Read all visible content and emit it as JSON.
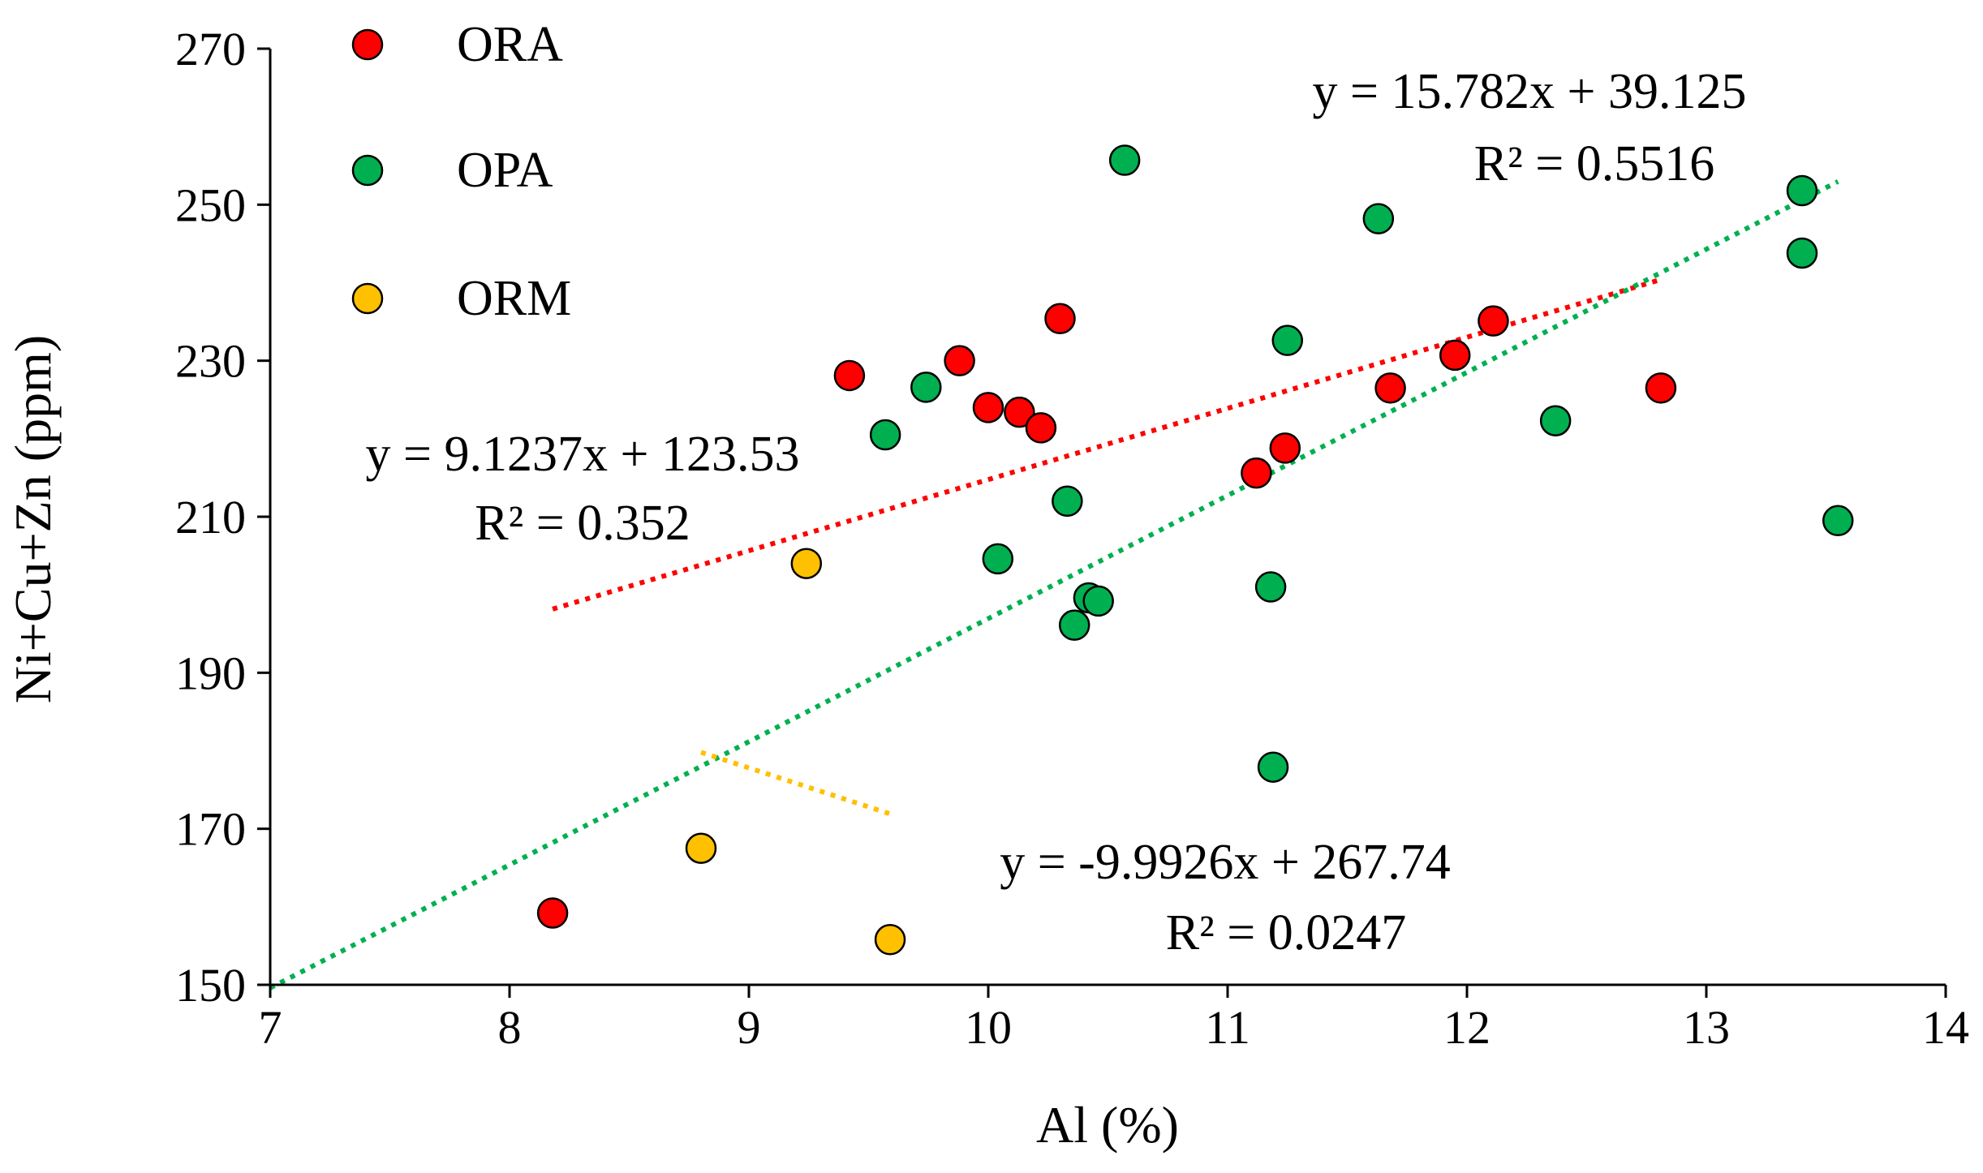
{
  "chart_data": {
    "type": "scatter",
    "title": "",
    "xlabel": "Al (%)",
    "ylabel": "Ni+Cu+Zn (ppm)",
    "xlim": [
      7,
      14
    ],
    "ylim": [
      150,
      270
    ],
    "xticks": [
      7,
      8,
      9,
      10,
      11,
      12,
      13,
      14
    ],
    "yticks": [
      150,
      170,
      190,
      210,
      230,
      250,
      270
    ],
    "grid": false,
    "legend_position": "top-left",
    "series": [
      {
        "name": "ORA",
        "color": "#ff0000",
        "points": [
          {
            "x": 8.18,
            "y": 159.2
          },
          {
            "x": 9.42,
            "y": 228.1
          },
          {
            "x": 9.88,
            "y": 230.0
          },
          {
            "x": 10.0,
            "y": 224.0
          },
          {
            "x": 10.13,
            "y": 223.4
          },
          {
            "x": 10.22,
            "y": 221.4
          },
          {
            "x": 10.3,
            "y": 235.4
          },
          {
            "x": 11.12,
            "y": 215.6
          },
          {
            "x": 11.24,
            "y": 218.8
          },
          {
            "x": 11.68,
            "y": 226.5
          },
          {
            "x": 11.95,
            "y": 230.7
          },
          {
            "x": 12.11,
            "y": 235.1
          },
          {
            "x": 12.81,
            "y": 226.5
          }
        ],
        "trendline": {
          "x": [
            8.18,
            12.81
          ],
          "equation": "y = 9.1237x + 123.53",
          "r2": "R² = 0.352",
          "slope": 9.1237,
          "intercept": 123.53
        }
      },
      {
        "name": "OPA",
        "color": "#00b050",
        "points": [
          {
            "x": 9.57,
            "y": 220.5
          },
          {
            "x": 9.74,
            "y": 226.6
          },
          {
            "x": 10.04,
            "y": 204.6
          },
          {
            "x": 10.33,
            "y": 212.0
          },
          {
            "x": 10.36,
            "y": 196.1
          },
          {
            "x": 10.42,
            "y": 199.6
          },
          {
            "x": 10.46,
            "y": 199.2
          },
          {
            "x": 10.57,
            "y": 255.7
          },
          {
            "x": 11.18,
            "y": 201.0
          },
          {
            "x": 11.19,
            "y": 177.9
          },
          {
            "x": 11.25,
            "y": 232.6
          },
          {
            "x": 11.63,
            "y": 248.2
          },
          {
            "x": 12.37,
            "y": 222.3
          },
          {
            "x": 13.4,
            "y": 251.8
          },
          {
            "x": 13.4,
            "y": 243.8
          },
          {
            "x": 13.55,
            "y": 209.5
          }
        ],
        "trendline": {
          "x": [
            7.0,
            13.55
          ],
          "equation": "y = 15.782x + 39.125",
          "r2": "R² = 0.5516",
          "slope": 15.782,
          "intercept": 39.125
        }
      },
      {
        "name": "ORM",
        "color": "#ffc000",
        "points": [
          {
            "x": 8.8,
            "y": 167.5
          },
          {
            "x": 9.24,
            "y": 204.0
          },
          {
            "x": 9.59,
            "y": 155.8
          }
        ],
        "trendline": {
          "x": [
            8.8,
            9.59
          ],
          "equation": "y = -9.9926x + 267.74",
          "r2": "R² = 0.0247",
          "slope": -9.9926,
          "intercept": 267.74
        }
      }
    ]
  }
}
